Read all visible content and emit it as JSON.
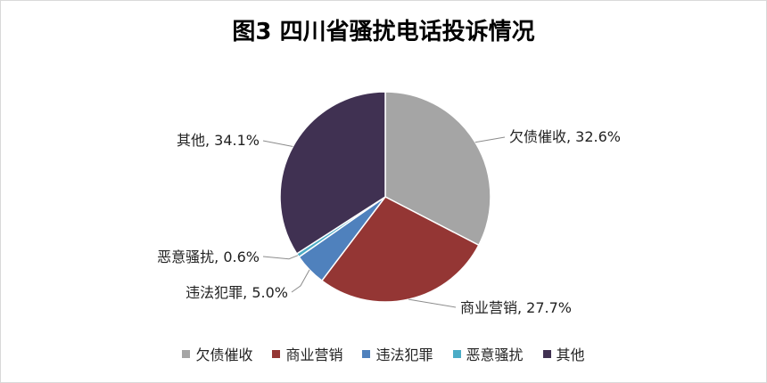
{
  "chart_data": {
    "type": "pie",
    "title": "图3 四川省骚扰电话投诉情况",
    "slices": [
      {
        "name": "欠债催收",
        "value": 32.6,
        "label": "欠债催收, 32.6%",
        "color": "#a5a5a5"
      },
      {
        "name": "商业营销",
        "value": 27.7,
        "label": "商业营销, 27.7%",
        "color": "#943634"
      },
      {
        "name": "违法犯罪",
        "value": 5.0,
        "label": "违法犯罪, 5.0%",
        "color": "#4f81bd"
      },
      {
        "name": "恶意骚扰",
        "value": 0.6,
        "label": "恶意骚扰, 0.6%",
        "color": "#4bacc6"
      },
      {
        "name": "其他",
        "value": 34.1,
        "label": "其他, 34.1%",
        "color": "#403152"
      }
    ],
    "legend_position": "bottom"
  }
}
